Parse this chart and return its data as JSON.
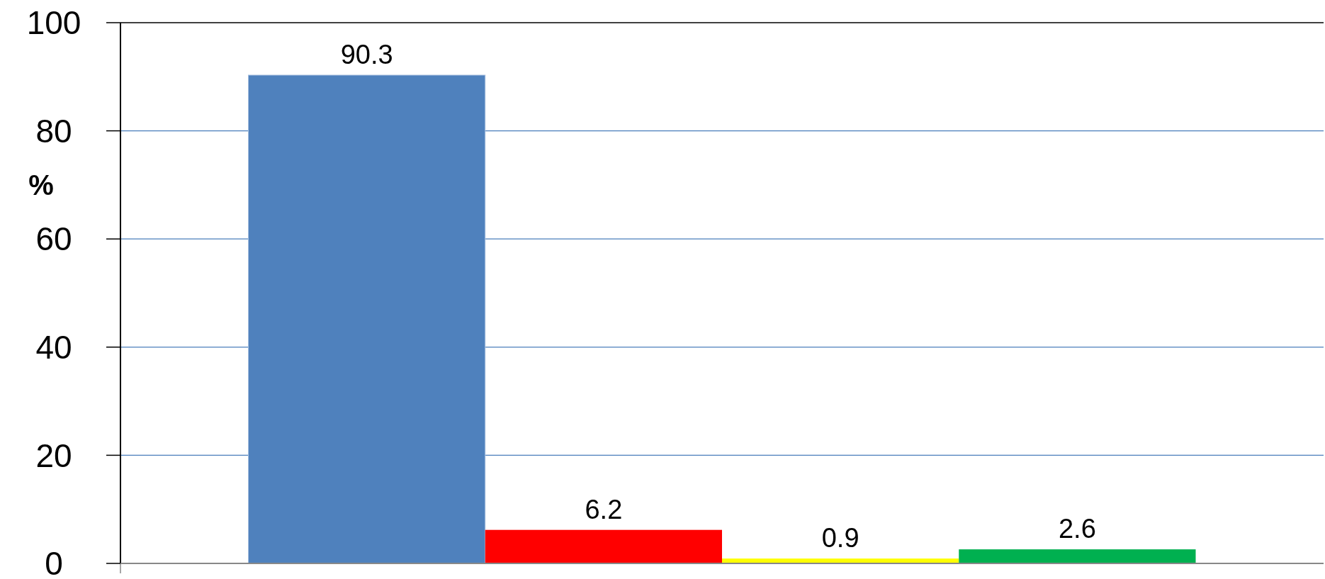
{
  "chart_data": {
    "type": "bar",
    "ylabel": "%",
    "categories": [
      null
    ],
    "series": [
      {
        "color": "#4f81bd",
        "values": [
          90.3
        ]
      },
      {
        "color": "#ff0000",
        "values": [
          6.2
        ]
      },
      {
        "color": "#ffff00",
        "values": [
          0.9
        ]
      },
      {
        "color": "#00b050",
        "values": [
          2.6
        ]
      }
    ],
    "ylim": [
      0,
      100
    ],
    "yticks": [
      0,
      20,
      40,
      60,
      80,
      100
    ],
    "grid": "y",
    "data_labels": true
  }
}
